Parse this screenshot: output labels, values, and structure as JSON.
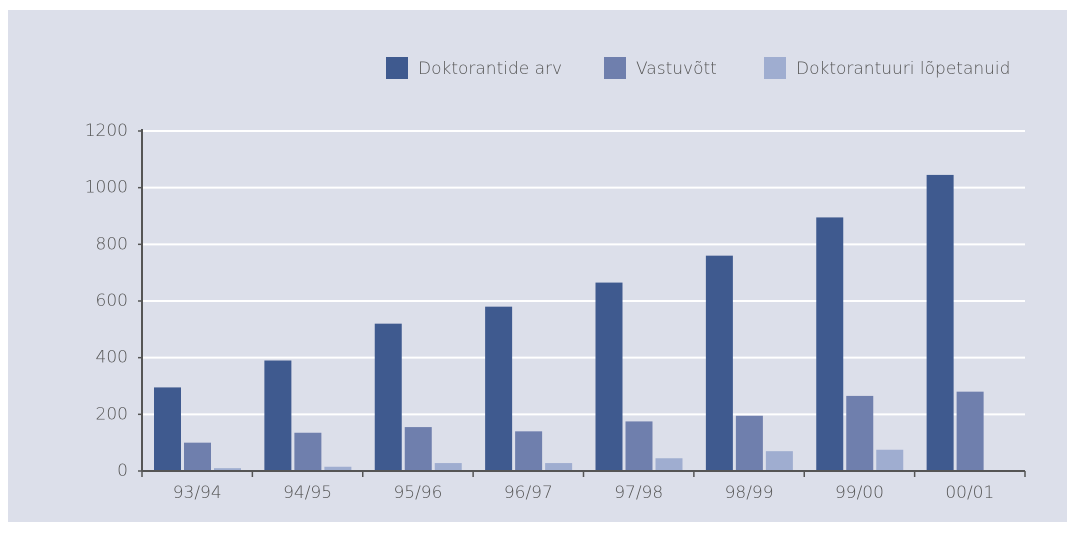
{
  "chart_data": {
    "type": "bar",
    "categories": [
      "93/94",
      "94/95",
      "95/96",
      "96/97",
      "97/98",
      "98/99",
      "99/00",
      "00/01"
    ],
    "series": [
      {
        "name": "Doktorantide arv",
        "color": "#3f5a8f",
        "values": [
          295,
          390,
          520,
          580,
          665,
          760,
          895,
          1045
        ]
      },
      {
        "name": "Vastuvõtt",
        "color": "#6f7fad",
        "values": [
          100,
          135,
          155,
          140,
          175,
          195,
          265,
          280
        ]
      },
      {
        "name": "Doktorantuuri lõpetanuid",
        "color": "#9fadd0",
        "values": [
          10,
          15,
          28,
          28,
          45,
          70,
          75,
          null
        ]
      }
    ],
    "ylim": [
      0,
      1200
    ],
    "yticks": [
      0,
      200,
      400,
      600,
      800,
      1000,
      1200
    ],
    "grid": true
  }
}
